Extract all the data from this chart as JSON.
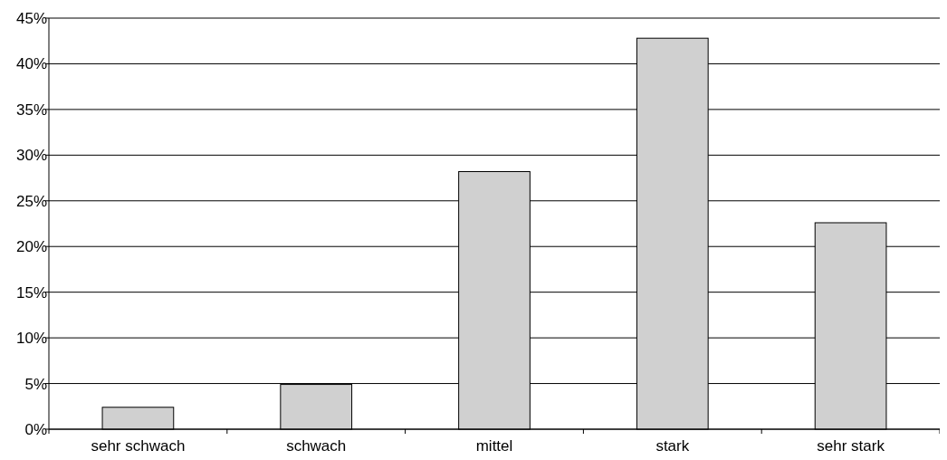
{
  "chart_data": {
    "type": "bar",
    "categories": [
      "sehr schwach",
      "schwach",
      "mittel",
      "stark",
      "sehr stark"
    ],
    "values": [
      2.4,
      4.9,
      28.2,
      42.8,
      22.6
    ],
    "color": "#d0d0d0",
    "ylim": [
      0,
      45
    ],
    "yticks": [
      {
        "value": 0,
        "label": "0%"
      },
      {
        "value": 5,
        "label": "5%"
      },
      {
        "value": 10,
        "label": "10%"
      },
      {
        "value": 15,
        "label": "15%"
      },
      {
        "value": 20,
        "label": "20%"
      },
      {
        "value": 25,
        "label": "25%"
      },
      {
        "value": 30,
        "label": "30%"
      },
      {
        "value": 35,
        "label": "35%"
      },
      {
        "value": 40,
        "label": "40%"
      },
      {
        "value": 45,
        "label": "45%"
      }
    ],
    "grid": "y"
  }
}
